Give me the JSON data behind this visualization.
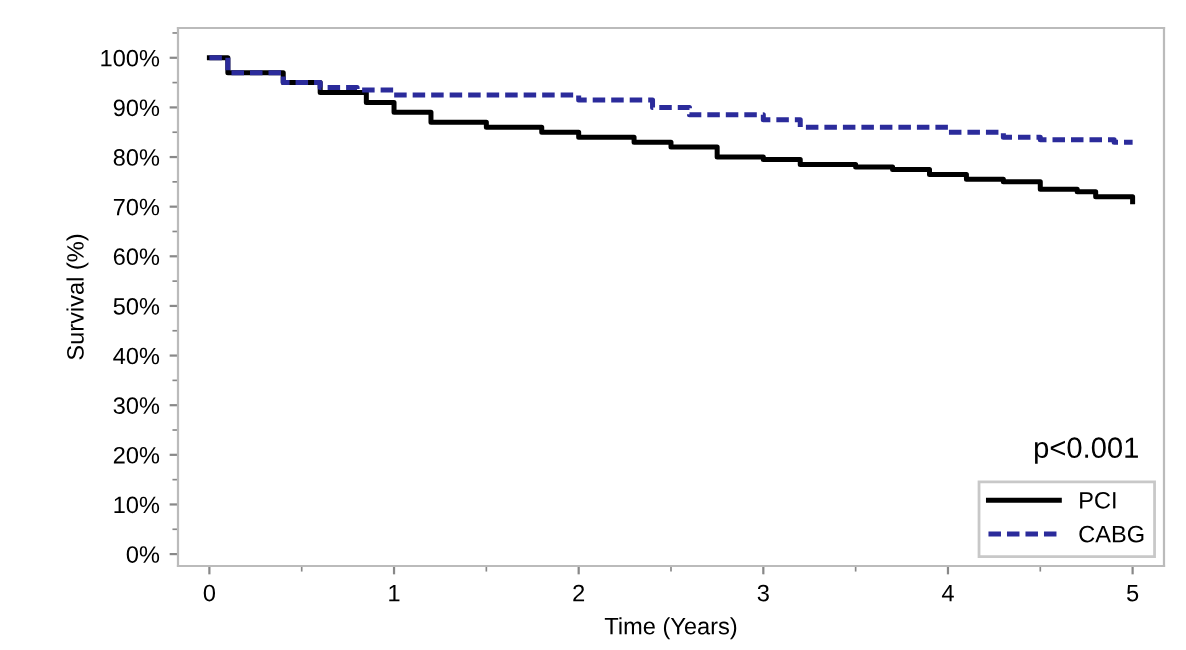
{
  "chart_data": {
    "type": "step",
    "xlabel": "Time (Years)",
    "ylabel": "Survival (%)",
    "xlim": [
      -0.17,
      5.17
    ],
    "ylim": [
      -2.4,
      106
    ],
    "xticks": [
      0,
      1,
      2,
      3,
      4,
      5
    ],
    "yticks": [
      {
        "value": 0,
        "label": "0%"
      },
      {
        "value": 10,
        "label": "10%"
      },
      {
        "value": 20,
        "label": "20%"
      },
      {
        "value": 30,
        "label": "30%"
      },
      {
        "value": 40,
        "label": "40%"
      },
      {
        "value": 50,
        "label": "50%"
      },
      {
        "value": 60,
        "label": "60%"
      },
      {
        "value": 70,
        "label": "70%"
      },
      {
        "value": 80,
        "label": "80%"
      },
      {
        "value": 90,
        "label": "90%"
      },
      {
        "value": 100,
        "label": "100%"
      }
    ],
    "grid": false,
    "legend": "bottom right",
    "annotations": [
      "p<0.001"
    ],
    "series": [
      {
        "name": "PCI",
        "color": "#000000",
        "line_style": "solid",
        "x": [
          0,
          0.1,
          0.4,
          0.6,
          0.85,
          1.0,
          1.2,
          1.5,
          1.8,
          2.0,
          2.3,
          2.5,
          2.75,
          3.0,
          3.2,
          3.5,
          3.7,
          3.9,
          4.1,
          4.3,
          4.5,
          4.7,
          4.8,
          5.0
        ],
        "values": [
          100,
          97,
          95,
          93,
          91,
          89,
          87,
          86,
          85,
          84,
          83,
          82,
          80,
          79.5,
          78.5,
          78,
          77.5,
          76.5,
          75.5,
          75,
          73.5,
          73,
          72,
          71
        ]
      },
      {
        "name": "CABG",
        "color": "#2b2b9b",
        "line_style": "dashed",
        "x": [
          0,
          0.1,
          0.4,
          0.6,
          0.8,
          1.0,
          1.6,
          2.0,
          2.4,
          2.6,
          3.0,
          3.2,
          3.8,
          4.0,
          4.3,
          4.5,
          4.9,
          5.0
        ],
        "values": [
          100,
          97,
          95,
          94,
          93.5,
          92.5,
          92.5,
          91.5,
          90,
          88.5,
          87.5,
          86,
          86,
          85,
          84,
          83.5,
          83,
          83
        ]
      }
    ]
  }
}
